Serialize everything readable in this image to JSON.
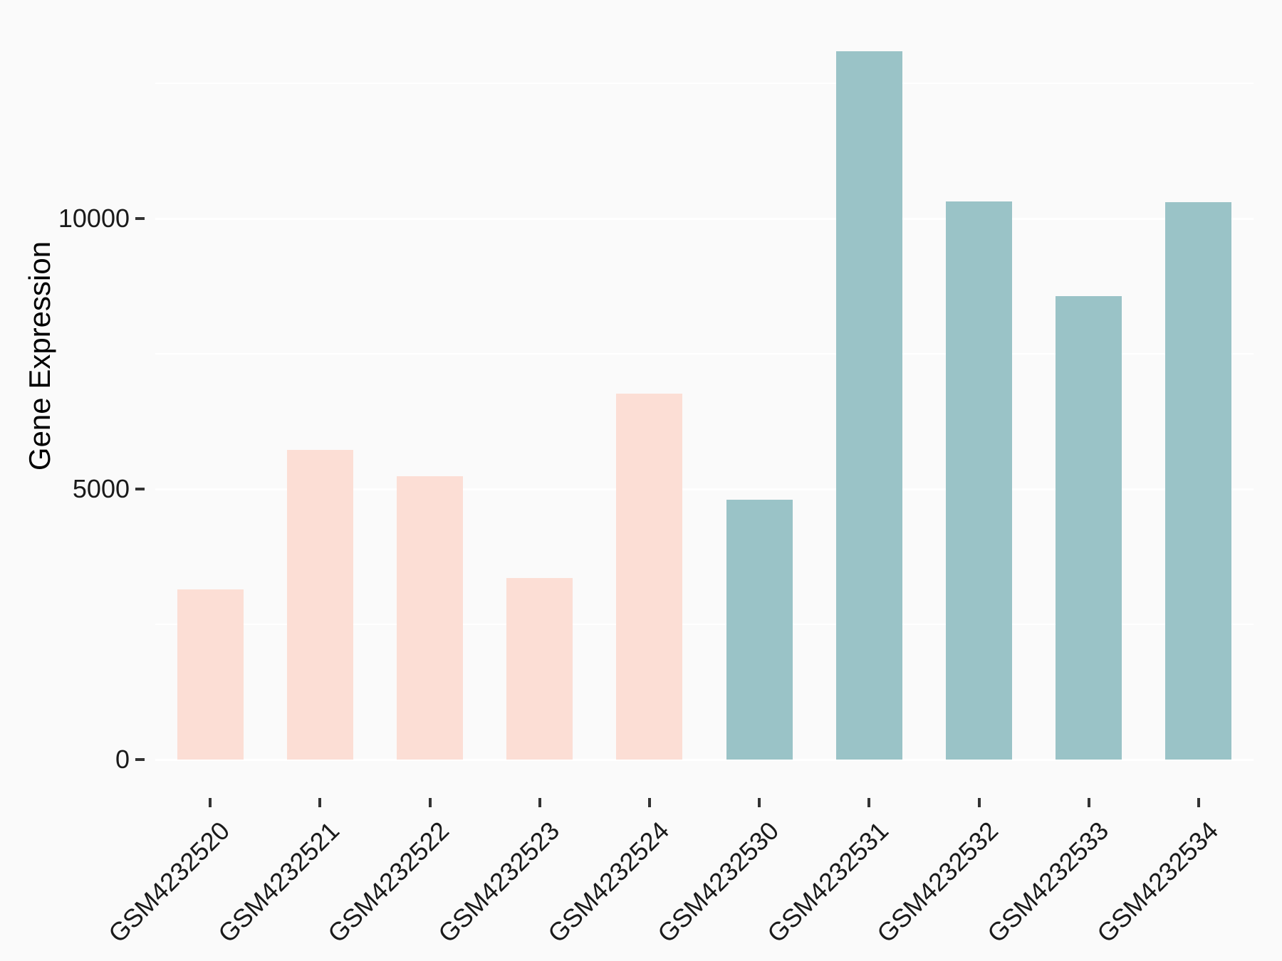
{
  "chart_data": {
    "type": "bar",
    "title": "",
    "xlabel": "",
    "ylabel": "Gene Expression",
    "categories": [
      "GSM4232520",
      "GSM4232521",
      "GSM4232522",
      "GSM4232523",
      "GSM4232524",
      "GSM4232530",
      "GSM4232531",
      "GSM4232532",
      "GSM4232533",
      "GSM4232534"
    ],
    "values": [
      3140,
      5720,
      5240,
      3360,
      6760,
      4800,
      13090,
      10320,
      8570,
      10300
    ],
    "bars": [
      {
        "label": "GSM4232520",
        "value": 3140,
        "color": "#FCDED5"
      },
      {
        "label": "GSM4232521",
        "value": 5720,
        "color": "#FCDED5"
      },
      {
        "label": "GSM4232522",
        "value": 5240,
        "color": "#FCDED5"
      },
      {
        "label": "GSM4232523",
        "value": 3360,
        "color": "#FCDED5"
      },
      {
        "label": "GSM4232524",
        "value": 6760,
        "color": "#FCDED5"
      },
      {
        "label": "GSM4232530",
        "value": 4800,
        "color": "#9AC3C7"
      },
      {
        "label": "GSM4232531",
        "value": 13090,
        "color": "#9AC3C7"
      },
      {
        "label": "GSM4232532",
        "value": 10320,
        "color": "#9AC3C7"
      },
      {
        "label": "GSM4232533",
        "value": 8570,
        "color": "#9AC3C7"
      },
      {
        "label": "GSM4232534",
        "value": 10300,
        "color": "#9AC3C7"
      }
    ],
    "y_ticks": [
      {
        "value": 0,
        "label": "0"
      },
      {
        "value": 5000,
        "label": "5000"
      },
      {
        "value": 10000,
        "label": "10000"
      }
    ],
    "y_minor_gridlines": [
      2500,
      7500,
      12500
    ],
    "ylim": [
      0,
      13750
    ],
    "grid": "on",
    "legend_position": "none",
    "colors": {
      "group_pink": "#FCDED5",
      "group_teal": "#9AC3C7",
      "background": "#FAFAFA",
      "gridline": "#FFFFFF",
      "tick_mark": "#333333",
      "axis_text": "#1a1a1a"
    }
  }
}
